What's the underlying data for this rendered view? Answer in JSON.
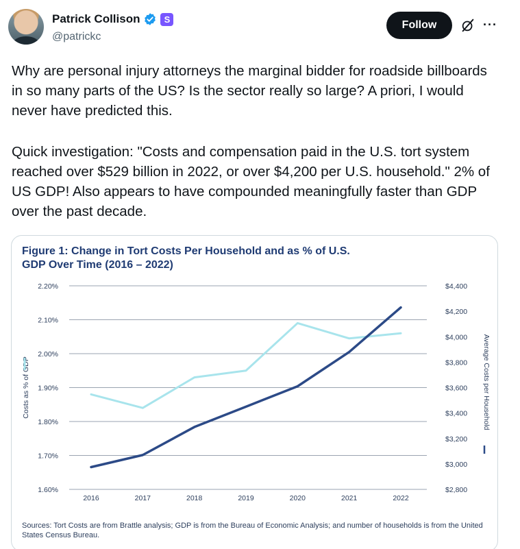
{
  "author": {
    "display_name": "Patrick Collison",
    "handle": "@patrickc",
    "subscription_badge": "S",
    "verified_color": "#1d9bf0"
  },
  "actions": {
    "follow_label": "Follow",
    "grok_icon": "grok-icon",
    "more_icon": "more-icon",
    "more_glyph": "···"
  },
  "tweet": {
    "paragraph_1": "Why are personal injury attorneys the marginal bidder for roadside billboards in so many parts of the US? Is the sector really so large? A priori, I would never have predicted this.",
    "paragraph_2": "Quick investigation: \"Costs and compensation paid in the U.S. tort system reached over $529 billion in 2022, or over $4,200 per U.S. household.\" 2% of US GDP! Also appears to have compounded meaningfully faster than GDP over the past decade."
  },
  "figure": {
    "title": "Figure 1: Change in Tort Costs Per Household and as % of U.S. GDP Over Time (2016 – 2022)",
    "sources": "Sources: Tort Costs are from Brattle analysis; GDP is from the Bureau of Economic Analysis; and number of households is from the United States Census Bureau."
  },
  "chart_data": {
    "type": "line",
    "title": "Figure 1: Change in Tort Costs Per Household and as % of U.S. GDP Over Time (2016 – 2022)",
    "categories": [
      "2016",
      "2017",
      "2018",
      "2019",
      "2020",
      "2021",
      "2022"
    ],
    "left_axis": {
      "label": "Costs as % of GDP",
      "ticks": [
        "1.60%",
        "1.70%",
        "1.80%",
        "1.90%",
        "2.00%",
        "2.10%",
        "2.20%"
      ],
      "ylim": [
        1.6,
        2.2
      ]
    },
    "right_axis": {
      "label": "Average Costs per Household",
      "ticks": [
        "$2,800",
        "$3,000",
        "$3,200",
        "$3,400",
        "$3,600",
        "$3,800",
        "$4,000",
        "$4,200",
        "$4,400"
      ],
      "ylim": [
        2800,
        4400
      ]
    },
    "series": [
      {
        "name": "Costs as % of GDP",
        "axis": "left",
        "color": "#a8e4ec",
        "values": [
          1.88,
          1.84,
          1.93,
          1.95,
          2.09,
          2.045,
          2.06
        ]
      },
      {
        "name": "Average Costs per Household",
        "axis": "right",
        "color": "#2c4a87",
        "values": [
          2975,
          3070,
          3290,
          3450,
          3610,
          3880,
          4230
        ]
      }
    ],
    "grid": true,
    "colors": {
      "title": "#1f3b73",
      "grid": "#9aa3b0",
      "tick_text": "#2c3e5c"
    }
  }
}
